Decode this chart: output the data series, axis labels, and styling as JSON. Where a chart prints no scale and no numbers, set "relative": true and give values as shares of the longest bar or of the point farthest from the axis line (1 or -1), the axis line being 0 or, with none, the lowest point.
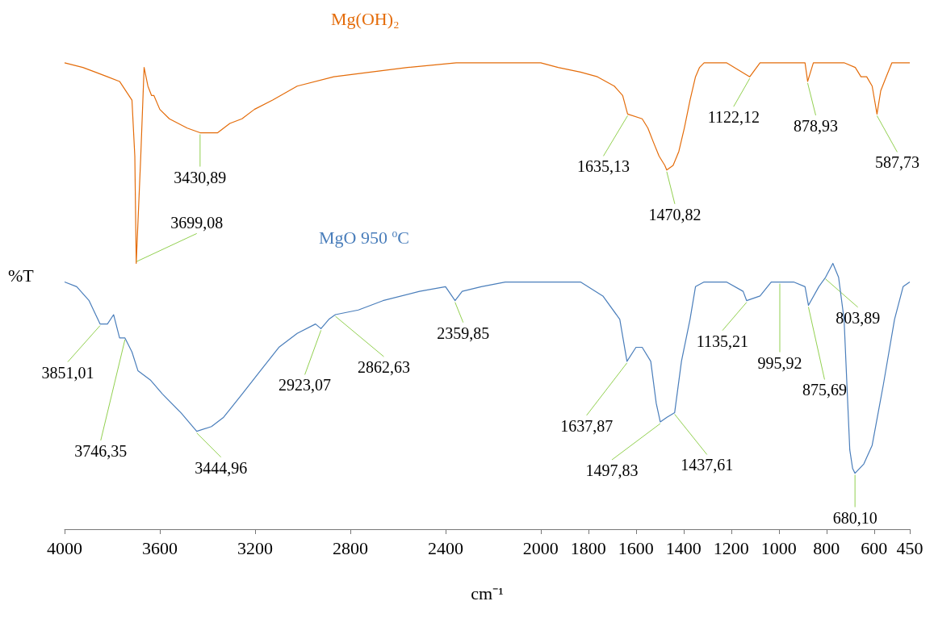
{
  "chart_data": {
    "type": "line",
    "relative": true,
    "xlabel": "cm⁻¹",
    "ylabel": "%T",
    "xlim": [
      4000,
      450
    ],
    "xticks": [
      4000,
      3600,
      3200,
      2800,
      2400,
      2000,
      1800,
      1600,
      1400,
      1200,
      1000,
      800,
      600,
      450
    ],
    "series": [
      {
        "name": "Mg(OH)₂",
        "color": "#e46c0a",
        "x": [
          4000,
          3923,
          3871,
          3820,
          3769,
          3717,
          3705,
          3699.08,
          3680,
          3666,
          3650,
          3635,
          3625,
          3600,
          3560,
          3485,
          3430.89,
          3357,
          3306,
          3255,
          3203,
          3126,
          3023,
          2869,
          2715,
          2560,
          2355,
          2149,
          2000,
          1927,
          1833,
          1762,
          1691,
          1656,
          1635.13,
          1574,
          1550,
          1527,
          1503,
          1479,
          1470.82,
          1444,
          1420,
          1397,
          1373,
          1350,
          1333,
          1314,
          1220,
          1122.12,
          1079,
          985,
          890,
          878.93,
          855,
          796,
          726,
          679,
          655,
          631,
          608,
          587.73,
          572,
          549,
          525,
          450
        ],
        "values": [
          1.0,
          0.99,
          0.98,
          0.97,
          0.96,
          0.92,
          0.8,
          0.57,
          0.8,
          0.99,
          0.95,
          0.93,
          0.93,
          0.9,
          0.88,
          0.86,
          0.85,
          0.85,
          0.87,
          0.88,
          0.9,
          0.92,
          0.95,
          0.97,
          0.98,
          0.99,
          1.0,
          1.0,
          1.0,
          0.99,
          0.98,
          0.97,
          0.95,
          0.93,
          0.89,
          0.88,
          0.86,
          0.83,
          0.8,
          0.78,
          0.77,
          0.78,
          0.81,
          0.86,
          0.92,
          0.97,
          0.99,
          1.0,
          1.0,
          0.97,
          1.0,
          1.0,
          1.0,
          0.96,
          1.0,
          1.0,
          1.0,
          0.99,
          0.97,
          0.97,
          0.95,
          0.89,
          0.94,
          0.97,
          1.0,
          1.0
        ]
      },
      {
        "name": "MgO 950 $^{o}$C",
        "color": "#4a7ebb",
        "x": [
          4000,
          3949,
          3897,
          3851.01,
          3820,
          3794,
          3769,
          3746.35,
          3717,
          3692,
          3640,
          3589,
          3512,
          3444.96,
          3383,
          3332,
          3254,
          3177,
          3100,
          3023,
          2946,
          2923.07,
          2890,
          2862.63,
          2766,
          2663,
          2509,
          2400,
          2359.85,
          2330,
          2250,
          2149,
          2000,
          1833,
          1739,
          1668,
          1637.87,
          1600,
          1574,
          1538,
          1515,
          1497.83,
          1470,
          1437.61,
          1409,
          1373,
          1350,
          1314,
          1220,
          1150,
          1135.21,
          1079,
          1032,
          995.92,
          938,
          890,
          875.69,
          832,
          803.89,
          773,
          749,
          726,
          714,
          702,
          690,
          680.1,
          643,
          608,
          561,
          514,
          478,
          450
        ],
        "values": [
          0.53,
          0.52,
          0.49,
          0.44,
          0.44,
          0.46,
          0.41,
          0.41,
          0.38,
          0.34,
          0.32,
          0.29,
          0.25,
          0.21,
          0.22,
          0.24,
          0.29,
          0.34,
          0.39,
          0.42,
          0.44,
          0.43,
          0.45,
          0.46,
          0.47,
          0.49,
          0.51,
          0.52,
          0.49,
          0.51,
          0.52,
          0.53,
          0.53,
          0.53,
          0.5,
          0.45,
          0.36,
          0.39,
          0.39,
          0.36,
          0.27,
          0.23,
          0.24,
          0.25,
          0.36,
          0.45,
          0.52,
          0.53,
          0.53,
          0.51,
          0.49,
          0.5,
          0.53,
          0.53,
          0.53,
          0.52,
          0.48,
          0.52,
          0.54,
          0.57,
          0.54,
          0.45,
          0.31,
          0.17,
          0.13,
          0.12,
          0.14,
          0.18,
          0.31,
          0.45,
          0.52,
          0.53
        ]
      }
    ],
    "annotations": [
      {
        "text": "3699,08",
        "x": 3699.08,
        "y": 0.57
      },
      {
        "text": "3430,89",
        "x": 3430.89,
        "y": 0.85
      },
      {
        "text": "1635,13",
        "x": 1635.13,
        "y": 0.89
      },
      {
        "text": "1470,82",
        "x": 1470.82,
        "y": 0.77
      },
      {
        "text": "1122,12",
        "x": 1122.12,
        "y": 0.97
      },
      {
        "text": "878,93",
        "x": 878.93,
        "y": 0.96
      },
      {
        "text": "587,73",
        "x": 587.73,
        "y": 0.89
      },
      {
        "text": "3851,01",
        "x": 3851.01,
        "y": 0.44
      },
      {
        "text": "3746,35",
        "x": 3746.35,
        "y": 0.41
      },
      {
        "text": "3444,96",
        "x": 3444.96,
        "y": 0.21
      },
      {
        "text": "2923,07",
        "x": 2923.07,
        "y": 0.43
      },
      {
        "text": "2862,63",
        "x": 2862.63,
        "y": 0.46
      },
      {
        "text": "2359,85",
        "x": 2359.85,
        "y": 0.49
      },
      {
        "text": "1637,87",
        "x": 1637.87,
        "y": 0.36
      },
      {
        "text": "1497,83",
        "x": 1497.83,
        "y": 0.23
      },
      {
        "text": "1437,61",
        "x": 1437.61,
        "y": 0.25
      },
      {
        "text": "1135,21",
        "x": 1135.21,
        "y": 0.49
      },
      {
        "text": "995,92",
        "x": 995.92,
        "y": 0.53
      },
      {
        "text": "875,69",
        "x": 875.69,
        "y": 0.48
      },
      {
        "text": "803,89",
        "x": 803.89,
        "y": 0.54
      },
      {
        "text": "680,10",
        "x": 680.1,
        "y": 0.12
      }
    ]
  }
}
